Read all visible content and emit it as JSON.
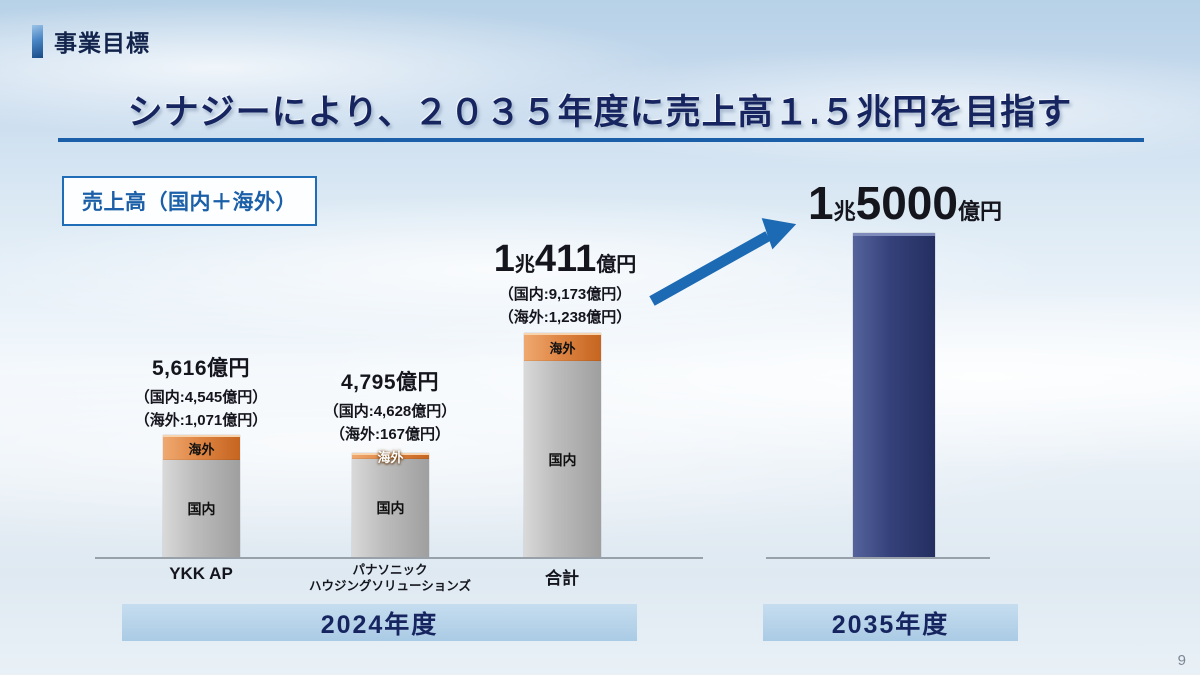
{
  "slide": {
    "header": "事業目標",
    "title": "シナジーにより、２０３５年度に売上高１.５兆円を目指す",
    "page_number": "9"
  },
  "legend": {
    "label": "売上高（国内＋海外）"
  },
  "colors": {
    "accent_blue": "#1a5fa8",
    "navy_bar": "#35417a",
    "overseas_orange": "#dd8342",
    "domestic_gray": "#bdbdbd",
    "band_blue": "#aacbe5",
    "arrow_blue": "#1b6ab3"
  },
  "chart_data": {
    "type": "bar",
    "unit": "億円",
    "title": "売上高（国内＋海外）",
    "categories": [
      "YKK AP",
      "パナソニック ハウジングソリューションズ",
      "合計",
      "2035年度"
    ],
    "series": [
      {
        "name": "国内",
        "values": [
          4545,
          4628,
          9173,
          null
        ]
      },
      {
        "name": "海外",
        "values": [
          1071,
          167,
          1238,
          null
        ]
      }
    ],
    "totals": [
      5616,
      4795,
      10411,
      15000
    ],
    "ylim": [
      0,
      15000
    ],
    "group_labels": {
      "left": "2024年度",
      "right": "2035年度"
    },
    "grid": false,
    "legend_position": "none"
  },
  "bars": {
    "ykk": {
      "total": "5,616億円",
      "domestic_detail": "（国内:4,545億円）",
      "overseas_detail": "（海外:1,071億円）",
      "seg_overseas": "海外",
      "seg_domestic": "国内",
      "axis_label": "YKK AP"
    },
    "panasonic": {
      "total": "4,795億円",
      "domestic_detail": "（国内:4,628億円）",
      "overseas_detail": "（海外:167億円）",
      "seg_overseas": "海外",
      "seg_domestic": "国内",
      "axis_label_line1": "パナソニック",
      "axis_label_line2": "ハウジングソリューションズ"
    },
    "goukei": {
      "num1": "1",
      "unit1": "兆",
      "num2": "411",
      "unit2": "億円",
      "domestic_detail": "（国内:9,173億円）",
      "overseas_detail": "（海外:1,238億円）",
      "seg_overseas": "海外",
      "seg_domestic": "国内",
      "axis_label": "合計"
    },
    "y2035": {
      "num1": "1",
      "unit1": "兆",
      "num2": "5000",
      "unit2": "億円"
    }
  },
  "bands": {
    "left": "2024年度",
    "right": "2035年度"
  }
}
